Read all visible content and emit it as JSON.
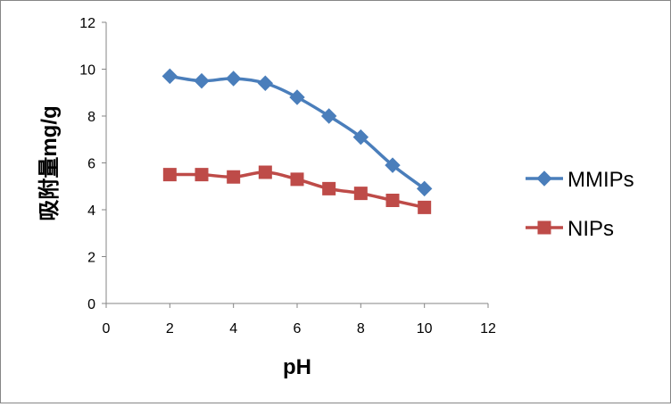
{
  "chart_data": {
    "type": "line",
    "title": "",
    "xlabel": "pH",
    "ylabel": "吸附量mg/g",
    "xlim": [
      0,
      12
    ],
    "ylim": [
      0,
      12
    ],
    "xticks": [
      0,
      2,
      4,
      6,
      8,
      10,
      12
    ],
    "yticks": [
      0,
      2,
      4,
      6,
      8,
      10,
      12
    ],
    "grid": false,
    "legend_position": "right",
    "smoothed": true,
    "x": [
      2,
      3,
      4,
      5,
      6,
      7,
      8,
      9,
      10
    ],
    "series": [
      {
        "name": "MMIPs",
        "values": [
          9.7,
          9.5,
          9.6,
          9.4,
          8.8,
          8.0,
          7.1,
          5.9,
          4.9
        ],
        "color": "#4a7ebb",
        "marker": "diamond"
      },
      {
        "name": "NIPs",
        "values": [
          5.5,
          5.5,
          5.4,
          5.6,
          5.3,
          4.9,
          4.7,
          4.4,
          4.1
        ],
        "color": "#be4b48",
        "marker": "square"
      }
    ]
  }
}
